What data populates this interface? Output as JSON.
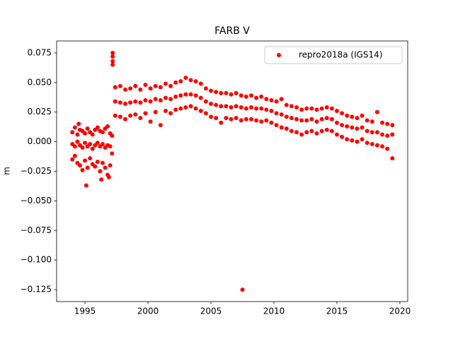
{
  "chart_data": {
    "type": "scatter",
    "title": "FARB V",
    "y_label": "m",
    "xlim": [
      1992.75,
      2020.62
    ],
    "ylim": [
      -0.1351,
      0.0851
    ],
    "xticks": [
      1995,
      2000,
      2005,
      2010,
      2015,
      2020
    ],
    "yticks": [
      {
        "value": 0.075,
        "label": "0.075"
      },
      {
        "value": 0.05,
        "label": "0.050"
      },
      {
        "value": 0.025,
        "label": "0.025"
      },
      {
        "value": 0,
        "label": "0.000"
      },
      {
        "value": -0.025,
        "label": "−0.025"
      },
      {
        "value": -0.05,
        "label": "−0.050"
      },
      {
        "value": -0.075,
        "label": "−0.075"
      },
      {
        "value": -0.1,
        "label": "−0.100"
      },
      {
        "value": -0.125,
        "label": "−0.125"
      }
    ],
    "legend": "upper right",
    "series": [
      {
        "name": "repro2018a (IGS14)",
        "color": "#ff0000",
        "x": [
          1994.0,
          1994.0,
          1994.0,
          1994.2,
          1994.2,
          1994.2,
          1994.4,
          1994.4,
          1994.4,
          1994.6,
          1994.6,
          1994.6,
          1994.8,
          1994.8,
          1994.8,
          1995.0,
          1995.0,
          1995.0,
          1995.2,
          1995.2,
          1995.2,
          1995.4,
          1995.4,
          1995.4,
          1995.6,
          1995.6,
          1995.6,
          1995.8,
          1995.8,
          1995.8,
          1996.0,
          1996.0,
          1996.0,
          1996.2,
          1996.2,
          1996.2,
          1996.4,
          1996.4,
          1996.4,
          1996.6,
          1996.6,
          1996.6,
          1996.8,
          1996.8,
          1996.8,
          1997.0,
          1997.0,
          1997.0,
          1994.5,
          1995.1,
          1996.3,
          1996.9,
          1997.15,
          1997.15,
          1997.2,
          1997.2,
          1997.2,
          1997.2,
          2007.5,
          1997.4,
          1997.4,
          1997.4,
          1997.8,
          1997.8,
          1997.8,
          1998.2,
          1998.2,
          1998.2,
          1998.6,
          1998.6,
          1998.6,
          1999.0,
          1999.0,
          1999.0,
          1999.4,
          1999.4,
          1999.4,
          1999.8,
          1999.8,
          1999.8,
          2000.2,
          2000.2,
          2000.2,
          2000.6,
          2000.6,
          2000.6,
          2001.0,
          2001.0,
          2001.0,
          2001.4,
          2001.4,
          2001.4,
          2001.8,
          2001.8,
          2001.8,
          2002.2,
          2002.2,
          2002.2,
          2002.6,
          2002.6,
          2002.6,
          2003.0,
          2003.0,
          2003.0,
          2003.4,
          2003.4,
          2003.4,
          2003.8,
          2003.8,
          2003.8,
          2004.2,
          2004.2,
          2004.2,
          2004.6,
          2004.6,
          2004.6,
          2005.0,
          2005.0,
          2005.0,
          2005.4,
          2005.4,
          2005.4,
          2005.8,
          2005.8,
          2005.8,
          2006.2,
          2006.2,
          2006.2,
          2006.6,
          2006.6,
          2006.6,
          2007.0,
          2007.0,
          2007.0,
          2007.4,
          2007.4,
          2007.4,
          2007.8,
          2007.8,
          2007.8,
          2008.2,
          2008.2,
          2008.2,
          2008.6,
          2008.6,
          2008.6,
          2009.0,
          2009.0,
          2009.0,
          2009.4,
          2009.4,
          2009.4,
          2009.8,
          2009.8,
          2009.8,
          2010.2,
          2010.2,
          2010.2,
          2010.6,
          2010.6,
          2010.6,
          2011.0,
          2011.0,
          2011.0,
          2011.4,
          2011.4,
          2011.4,
          2011.8,
          2011.8,
          2011.8,
          2012.2,
          2012.2,
          2012.2,
          2012.6,
          2012.6,
          2012.6,
          2013.0,
          2013.0,
          2013.0,
          2013.4,
          2013.4,
          2013.4,
          2013.8,
          2013.8,
          2013.8,
          2014.2,
          2014.2,
          2014.2,
          2014.6,
          2014.6,
          2014.6,
          2015.0,
          2015.0,
          2015.0,
          2015.4,
          2015.4,
          2015.4,
          2015.8,
          2015.8,
          2015.8,
          2016.2,
          2016.2,
          2016.2,
          2016.6,
          2016.6,
          2016.6,
          2017.0,
          2017.0,
          2017.0,
          2017.4,
          2017.4,
          2017.4,
          2017.8,
          2017.8,
          2017.8,
          2018.2,
          2018.2,
          2018.2,
          2018.6,
          2018.6,
          2018.6,
          2019.0,
          2019.0,
          2019.0,
          2019.4,
          2019.4,
          2019.4
        ],
        "values": [
          -0.002,
          0.008,
          -0.015,
          -0.004,
          0.012,
          -0.012,
          0.0,
          0.006,
          -0.018,
          -0.003,
          0.01,
          -0.02,
          -0.005,
          0.009,
          -0.024,
          -0.001,
          0.007,
          -0.016,
          -0.004,
          0.011,
          -0.022,
          -0.002,
          0.008,
          -0.014,
          -0.006,
          0.006,
          -0.019,
          -0.003,
          0.01,
          -0.021,
          -0.001,
          0.012,
          -0.017,
          -0.004,
          0.009,
          -0.025,
          -0.002,
          0.008,
          -0.018,
          -0.005,
          0.011,
          -0.022,
          -0.003,
          0.013,
          -0.028,
          -0.004,
          0.007,
          -0.02,
          0.015,
          -0.037,
          -0.032,
          -0.03,
          0.005,
          -0.01,
          0.075,
          0.072,
          0.068,
          0.065,
          -0.125,
          0.034,
          0.046,
          0.022,
          0.033,
          0.047,
          0.021,
          0.032,
          0.044,
          0.019,
          0.033,
          0.045,
          0.022,
          0.034,
          0.047,
          0.023,
          0.033,
          0.044,
          0.02,
          0.035,
          0.048,
          0.024,
          0.034,
          0.045,
          0.017,
          0.036,
          0.047,
          0.025,
          0.035,
          0.046,
          0.014,
          0.037,
          0.049,
          0.026,
          0.036,
          0.047,
          0.024,
          0.038,
          0.05,
          0.027,
          0.039,
          0.051,
          0.028,
          0.04,
          0.054,
          0.029,
          0.04,
          0.052,
          0.03,
          0.039,
          0.051,
          0.028,
          0.037,
          0.049,
          0.026,
          0.034,
          0.045,
          0.024,
          0.032,
          0.043,
          0.021,
          0.031,
          0.042,
          0.02,
          0.03,
          0.041,
          0.016,
          0.03,
          0.041,
          0.02,
          0.029,
          0.04,
          0.019,
          0.03,
          0.041,
          0.02,
          0.029,
          0.039,
          0.018,
          0.028,
          0.038,
          0.019,
          0.029,
          0.039,
          0.019,
          0.028,
          0.037,
          0.018,
          0.028,
          0.038,
          0.017,
          0.027,
          0.036,
          0.018,
          0.026,
          0.035,
          0.016,
          0.024,
          0.034,
          0.014,
          0.023,
          0.036,
          0.012,
          0.021,
          0.031,
          0.011,
          0.02,
          0.03,
          0.009,
          0.019,
          0.029,
          0.008,
          0.018,
          0.027,
          0.006,
          0.018,
          0.028,
          0.008,
          0.019,
          0.028,
          0.009,
          0.017,
          0.027,
          0.007,
          0.019,
          0.028,
          0.009,
          0.02,
          0.029,
          0.01,
          0.019,
          0.028,
          0.009,
          0.016,
          0.026,
          0.006,
          0.014,
          0.024,
          0.004,
          0.013,
          0.022,
          0.002,
          0.012,
          0.021,
          0.001,
          0.011,
          0.02,
          0.0,
          0.012,
          0.022,
          0.002,
          0.009,
          0.018,
          -0.001,
          0.008,
          0.017,
          -0.002,
          0.008,
          0.025,
          -0.003,
          0.006,
          0.016,
          -0.004,
          0.005,
          0.015,
          -0.006,
          0.006,
          0.014,
          -0.014
        ]
      }
    ]
  }
}
